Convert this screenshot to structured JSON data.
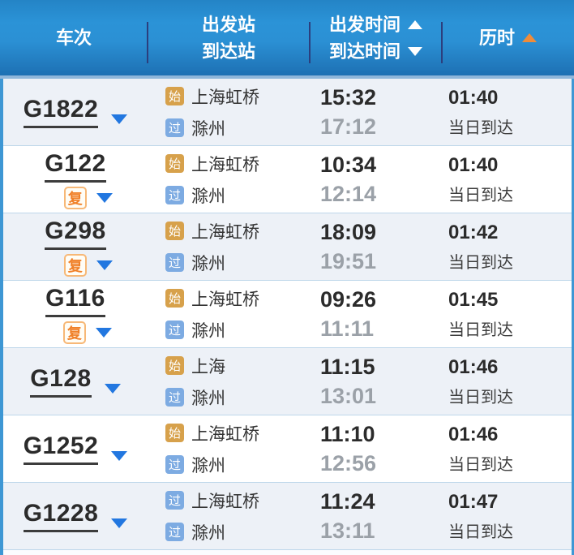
{
  "table": {
    "header": {
      "train_col": "车次",
      "station_col_line1": "出发站",
      "station_col_line2": "到达站",
      "time_col_line1": "出发时间",
      "time_col_line2": "到达时间",
      "duration_col": "历时",
      "active_sort": "duration-asc"
    },
    "badges": {
      "start": "始",
      "pass": "过",
      "fuxing": "复"
    },
    "rows": [
      {
        "train_no": "G1822",
        "has_fuxing_badge": false,
        "dep_badge": "start",
        "arr_badge": "pass",
        "dep_station": "上海虹桥",
        "arr_station": "滁州",
        "dep_time": "15:32",
        "arr_time": "17:12",
        "duration": "01:40",
        "arrival_day": "当日到达"
      },
      {
        "train_no": "G122",
        "has_fuxing_badge": true,
        "dep_badge": "start",
        "arr_badge": "pass",
        "dep_station": "上海虹桥",
        "arr_station": "滁州",
        "dep_time": "10:34",
        "arr_time": "12:14",
        "duration": "01:40",
        "arrival_day": "当日到达"
      },
      {
        "train_no": "G298",
        "has_fuxing_badge": true,
        "dep_badge": "start",
        "arr_badge": "pass",
        "dep_station": "上海虹桥",
        "arr_station": "滁州",
        "dep_time": "18:09",
        "arr_time": "19:51",
        "duration": "01:42",
        "arrival_day": "当日到达"
      },
      {
        "train_no": "G116",
        "has_fuxing_badge": true,
        "dep_badge": "start",
        "arr_badge": "pass",
        "dep_station": "上海虹桥",
        "arr_station": "滁州",
        "dep_time": "09:26",
        "arr_time": "11:11",
        "duration": "01:45",
        "arrival_day": "当日到达"
      },
      {
        "train_no": "G128",
        "has_fuxing_badge": false,
        "dep_badge": "start",
        "arr_badge": "pass",
        "dep_station": "上海",
        "arr_station": "滁州",
        "dep_time": "11:15",
        "arr_time": "13:01",
        "duration": "01:46",
        "arrival_day": "当日到达"
      },
      {
        "train_no": "G1252",
        "has_fuxing_badge": false,
        "dep_badge": "start",
        "arr_badge": "pass",
        "dep_station": "上海虹桥",
        "arr_station": "滁州",
        "dep_time": "11:10",
        "arr_time": "12:56",
        "duration": "01:46",
        "arrival_day": "当日到达"
      },
      {
        "train_no": "G1228",
        "has_fuxing_badge": false,
        "dep_badge": "pass",
        "arr_badge": "pass",
        "dep_station": "上海虹桥",
        "arr_station": "滁州",
        "dep_time": "11:24",
        "arr_time": "13:11",
        "duration": "01:47",
        "arrival_day": "当日到达"
      }
    ]
  },
  "colors": {
    "header_blue_top": "#2b93d7",
    "header_blue_bottom": "#1d70b3",
    "side_strip": "#3e97d4",
    "row_alt": "#edf1f7",
    "row_separator": "#bed7ea",
    "badge_start": "#d7a14b",
    "badge_pass": "#7dabe2",
    "fuxing_orange": "#f08028",
    "sort_active_orange": "#ef8c3a",
    "expand_arrow_blue": "#2277e0",
    "time_gray": "#9ba1a8"
  }
}
